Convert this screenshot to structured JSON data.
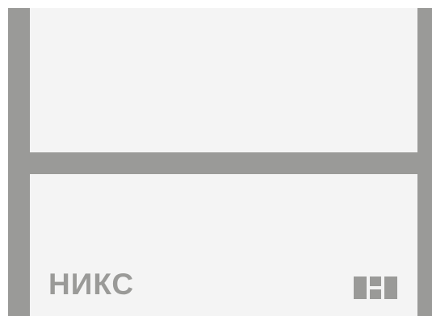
{
  "sign": {
    "brand_text": "НИКС",
    "brand_mark_icon": "niks-logo-icon",
    "colors": {
      "background": "#f4f4f4",
      "frame": "#9a9a98",
      "logo": "#9a9a98"
    }
  }
}
